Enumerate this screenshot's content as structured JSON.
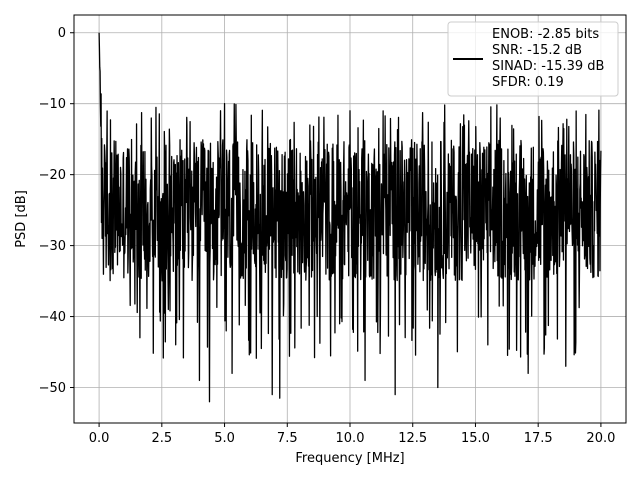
{
  "chart_data": {
    "type": "line",
    "title": "",
    "xlabel": "Frequency [MHz]",
    "ylabel": "PSD [dB]",
    "xlim": [
      -1.0,
      21.0
    ],
    "ylim": [
      -55,
      2.5
    ],
    "x_ticks": [
      0.0,
      2.5,
      5.0,
      7.5,
      10.0,
      12.5,
      15.0,
      17.5,
      20.0
    ],
    "x_tick_labels": [
      "0.0",
      "2.5",
      "5.0",
      "7.5",
      "10.0",
      "12.5",
      "15.0",
      "17.5",
      "20.0"
    ],
    "y_ticks": [
      0,
      -10,
      -20,
      -30,
      -40,
      -50
    ],
    "y_tick_labels": [
      "0",
      "−10",
      "−20",
      "−30",
      "−40",
      "−50"
    ],
    "grid": true,
    "legend_position": "top-right",
    "legend_lines": [
      "ENOB: -2.85 bits",
      "SNR: -15.2 dB",
      "SINAD: -15.39 dB",
      "SFDR: 0.19"
    ],
    "series": [
      {
        "color": "#000000",
        "x_range": [
          0.0,
          20.0
        ],
        "typical_band_db": [
          -35,
          -15
        ],
        "peak_max_db": 0,
        "notable_dips": [
          {
            "x": 3.5,
            "y": -44
          },
          {
            "x": 4.0,
            "y": -49
          },
          {
            "x": 4.4,
            "y": -52
          },
          {
            "x": 5.3,
            "y": -48
          },
          {
            "x": 6.9,
            "y": -51
          },
          {
            "x": 7.2,
            "y": -51.5
          },
          {
            "x": 10.6,
            "y": -49
          },
          {
            "x": 11.8,
            "y": -51
          },
          {
            "x": 13.5,
            "y": -50
          },
          {
            "x": 17.1,
            "y": -48
          },
          {
            "x": 18.6,
            "y": -47
          }
        ],
        "notable_peaks": [
          {
            "x": 0.0,
            "y": 0
          },
          {
            "x": 5.0,
            "y": -10
          },
          {
            "x": 10.0,
            "y": -11
          },
          {
            "x": 3.5,
            "y": -13
          },
          {
            "x": 8.4,
            "y": -13
          }
        ]
      }
    ]
  }
}
